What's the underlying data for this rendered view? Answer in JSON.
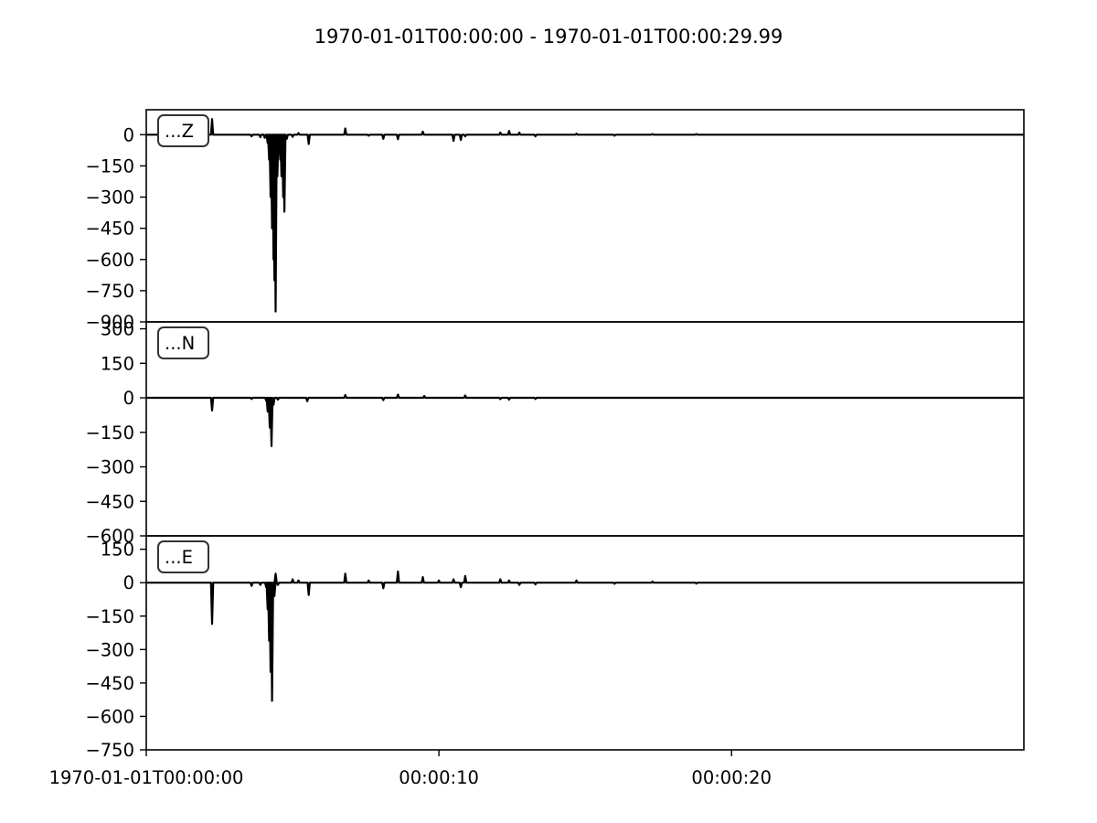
{
  "chart_data": {
    "type": "line",
    "title": "1970-01-01T00:00:00  -  1970-01-01T00:00:29.99",
    "x_ticks": [
      {
        "t": 0,
        "label": "1970-01-01T00:00:00"
      },
      {
        "t": 10,
        "label": "00:00:10"
      },
      {
        "t": 20,
        "label": "00:00:20"
      }
    ],
    "xlim": [
      0,
      29.99
    ],
    "line_color": "#000000",
    "panels": [
      {
        "name": "...Z",
        "ylim": [
          -900,
          120
        ],
        "yticks": [
          0,
          -150,
          -300,
          -450,
          -600,
          -750,
          -900
        ],
        "spikes": [
          [
            2.25,
            75
          ],
          [
            3.6,
            -8
          ],
          [
            3.9,
            -12
          ],
          [
            4.05,
            -15
          ],
          [
            4.15,
            -40
          ],
          [
            4.2,
            -120
          ],
          [
            4.25,
            -300
          ],
          [
            4.3,
            -450
          ],
          [
            4.35,
            -600
          ],
          [
            4.38,
            -700
          ],
          [
            4.42,
            -850
          ],
          [
            4.48,
            -200
          ],
          [
            4.52,
            -80
          ],
          [
            4.58,
            -120
          ],
          [
            4.62,
            -200
          ],
          [
            4.68,
            -300
          ],
          [
            4.72,
            -370
          ],
          [
            4.8,
            -20
          ],
          [
            5.0,
            -10
          ],
          [
            5.2,
            8
          ],
          [
            5.55,
            -45
          ],
          [
            6.8,
            30
          ],
          [
            7.6,
            -5
          ],
          [
            8.1,
            -20
          ],
          [
            8.6,
            -22
          ],
          [
            9.45,
            15
          ],
          [
            10.5,
            -30
          ],
          [
            10.75,
            -25
          ],
          [
            10.9,
            -8
          ],
          [
            12.1,
            10
          ],
          [
            12.4,
            18
          ],
          [
            12.75,
            10
          ],
          [
            13.3,
            -8
          ],
          [
            14.7,
            5
          ],
          [
            16.0,
            -5
          ],
          [
            17.3,
            3
          ],
          [
            18.8,
            3
          ]
        ]
      },
      {
        "name": "...N",
        "ylim": [
          -600,
          330
        ],
        "yticks": [
          300,
          150,
          0,
          -150,
          -300,
          -450,
          -600
        ],
        "spikes": [
          [
            2.25,
            -55
          ],
          [
            3.6,
            -5
          ],
          [
            4.1,
            -12
          ],
          [
            4.15,
            -60
          ],
          [
            4.22,
            -130
          ],
          [
            4.28,
            -210
          ],
          [
            4.35,
            -30
          ],
          [
            4.5,
            -8
          ],
          [
            5.5,
            -15
          ],
          [
            6.8,
            12
          ],
          [
            8.1,
            -10
          ],
          [
            8.6,
            14
          ],
          [
            9.5,
            8
          ],
          [
            10.9,
            10
          ],
          [
            12.1,
            -6
          ],
          [
            12.4,
            -8
          ],
          [
            13.3,
            -5
          ]
        ]
      },
      {
        "name": "...E",
        "ylim": [
          -750,
          210
        ],
        "yticks": [
          150,
          0,
          -150,
          -300,
          -450,
          -600,
          -750
        ],
        "spikes": [
          [
            2.25,
            -185
          ],
          [
            3.6,
            -15
          ],
          [
            3.9,
            -10
          ],
          [
            4.1,
            -20
          ],
          [
            4.15,
            -120
          ],
          [
            4.2,
            -260
          ],
          [
            4.25,
            -400
          ],
          [
            4.3,
            -530
          ],
          [
            4.38,
            -60
          ],
          [
            4.42,
            40
          ],
          [
            4.5,
            -10
          ],
          [
            5.0,
            15
          ],
          [
            5.2,
            10
          ],
          [
            5.55,
            -55
          ],
          [
            6.8,
            40
          ],
          [
            7.6,
            10
          ],
          [
            8.1,
            -25
          ],
          [
            8.6,
            50
          ],
          [
            9.45,
            25
          ],
          [
            10.0,
            10
          ],
          [
            10.5,
            15
          ],
          [
            10.75,
            -20
          ],
          [
            10.9,
            30
          ],
          [
            12.1,
            15
          ],
          [
            12.4,
            10
          ],
          [
            12.75,
            -10
          ],
          [
            13.3,
            -8
          ],
          [
            14.7,
            10
          ],
          [
            16.0,
            -5
          ],
          [
            17.3,
            5
          ],
          [
            18.8,
            -4
          ]
        ]
      }
    ]
  }
}
